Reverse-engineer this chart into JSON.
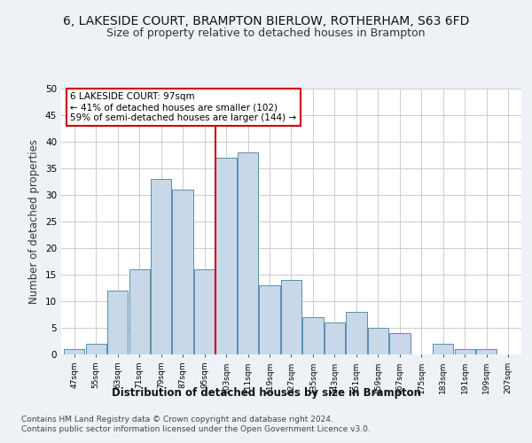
{
  "title1": "6, LAKESIDE COURT, BRAMPTON BIERLOW, ROTHERHAM, S63 6FD",
  "title2": "Size of property relative to detached houses in Brampton",
  "xlabel": "Distribution of detached houses by size in Brampton",
  "ylabel": "Number of detached properties",
  "footer1": "Contains HM Land Registry data © Crown copyright and database right 2024.",
  "footer2": "Contains public sector information licensed under the Open Government Licence v3.0.",
  "categories": [
    "47sqm",
    "55sqm",
    "63sqm",
    "71sqm",
    "79sqm",
    "87sqm",
    "95sqm",
    "103sqm",
    "111sqm",
    "119sqm",
    "127sqm",
    "135sqm",
    "143sqm",
    "151sqm",
    "159sqm",
    "167sqm",
    "175sqm",
    "183sqm",
    "191sqm",
    "199sqm",
    "207sqm"
  ],
  "values": [
    1,
    2,
    12,
    16,
    33,
    31,
    16,
    37,
    38,
    13,
    14,
    7,
    6,
    8,
    5,
    4,
    0,
    2,
    1,
    1,
    0
  ],
  "bar_color": "#c8d8e8",
  "bar_edge_color": "#5b8db0",
  "vline_color": "#cc0000",
  "annotation_text": "6 LAKESIDE COURT: 97sqm\n← 41% of detached houses are smaller (102)\n59% of semi-detached houses are larger (144) →",
  "annotation_box_color": "#ffffff",
  "annotation_box_edge": "#cc0000",
  "ylim": [
    0,
    50
  ],
  "yticks": [
    0,
    5,
    10,
    15,
    20,
    25,
    30,
    35,
    40,
    45,
    50
  ],
  "bg_color": "#eef2f7",
  "plot_bg": "#ffffff",
  "grid_color": "#cccccc",
  "title1_fontsize": 10,
  "title2_fontsize": 9,
  "xlabel_fontsize": 8.5,
  "ylabel_fontsize": 8.5,
  "footer_fontsize": 6.5
}
